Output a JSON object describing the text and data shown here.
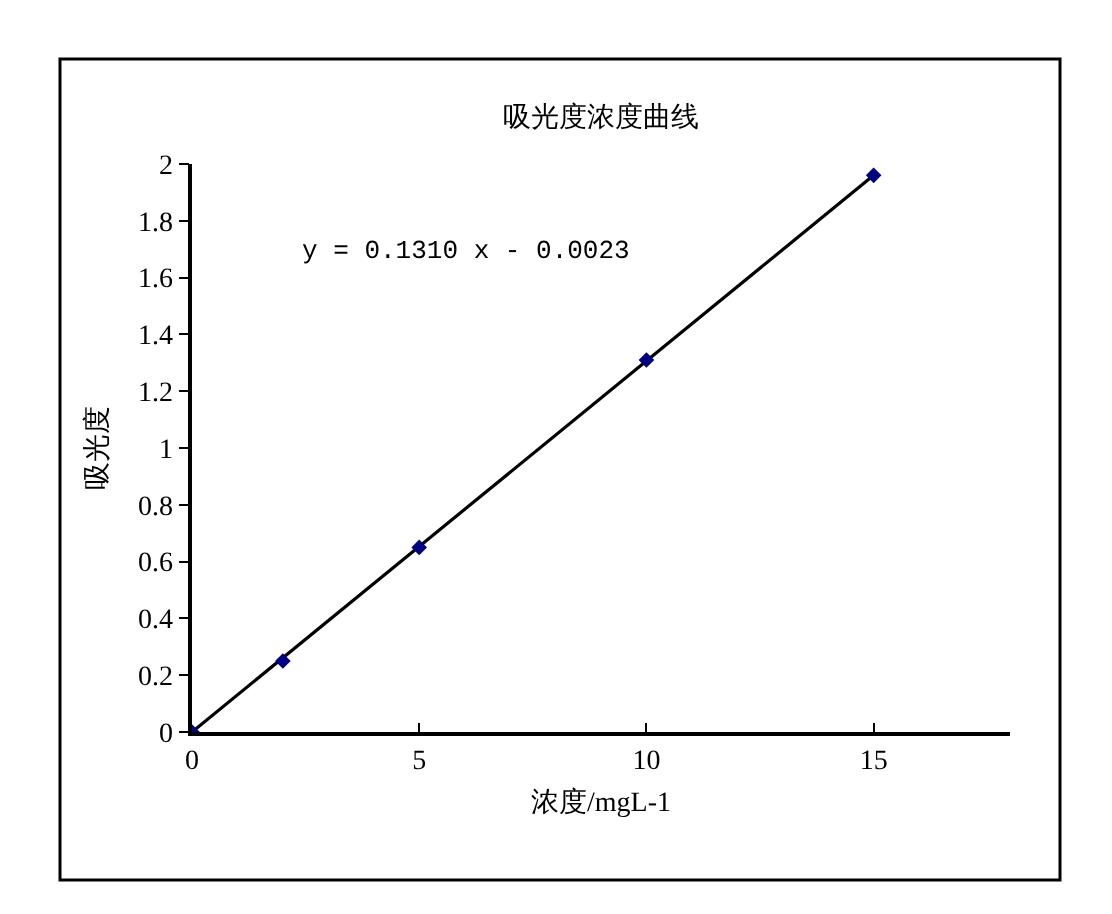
{
  "chart_data": {
    "type": "scatter",
    "title": "吸光度浓度曲线",
    "xlabel": "浓度/mgL-1",
    "ylabel": "吸光度",
    "x": [
      0,
      2,
      5,
      10,
      15
    ],
    "series": [
      {
        "type": "line",
        "color": "#000000",
        "x": [
          0,
          15
        ],
        "values": [
          0,
          1.96
        ],
        "marker": "none",
        "line_style": "solid"
      },
      {
        "color": "#000080",
        "marker": "diamond",
        "values": [
          0,
          0.25,
          0.65,
          1.31,
          1.96
        ]
      }
    ],
    "annotations": [
      "y = 0.1310 x - 0.0023"
    ],
    "xlim": [
      0,
      18
    ],
    "xticks": [
      0,
      5,
      10,
      15
    ],
    "ylim": [
      0,
      2
    ],
    "yticks": [
      0,
      0.2,
      0.4,
      0.6,
      0.8,
      1,
      1.2,
      1.4,
      1.6,
      1.8,
      2
    ],
    "grid": false
  }
}
